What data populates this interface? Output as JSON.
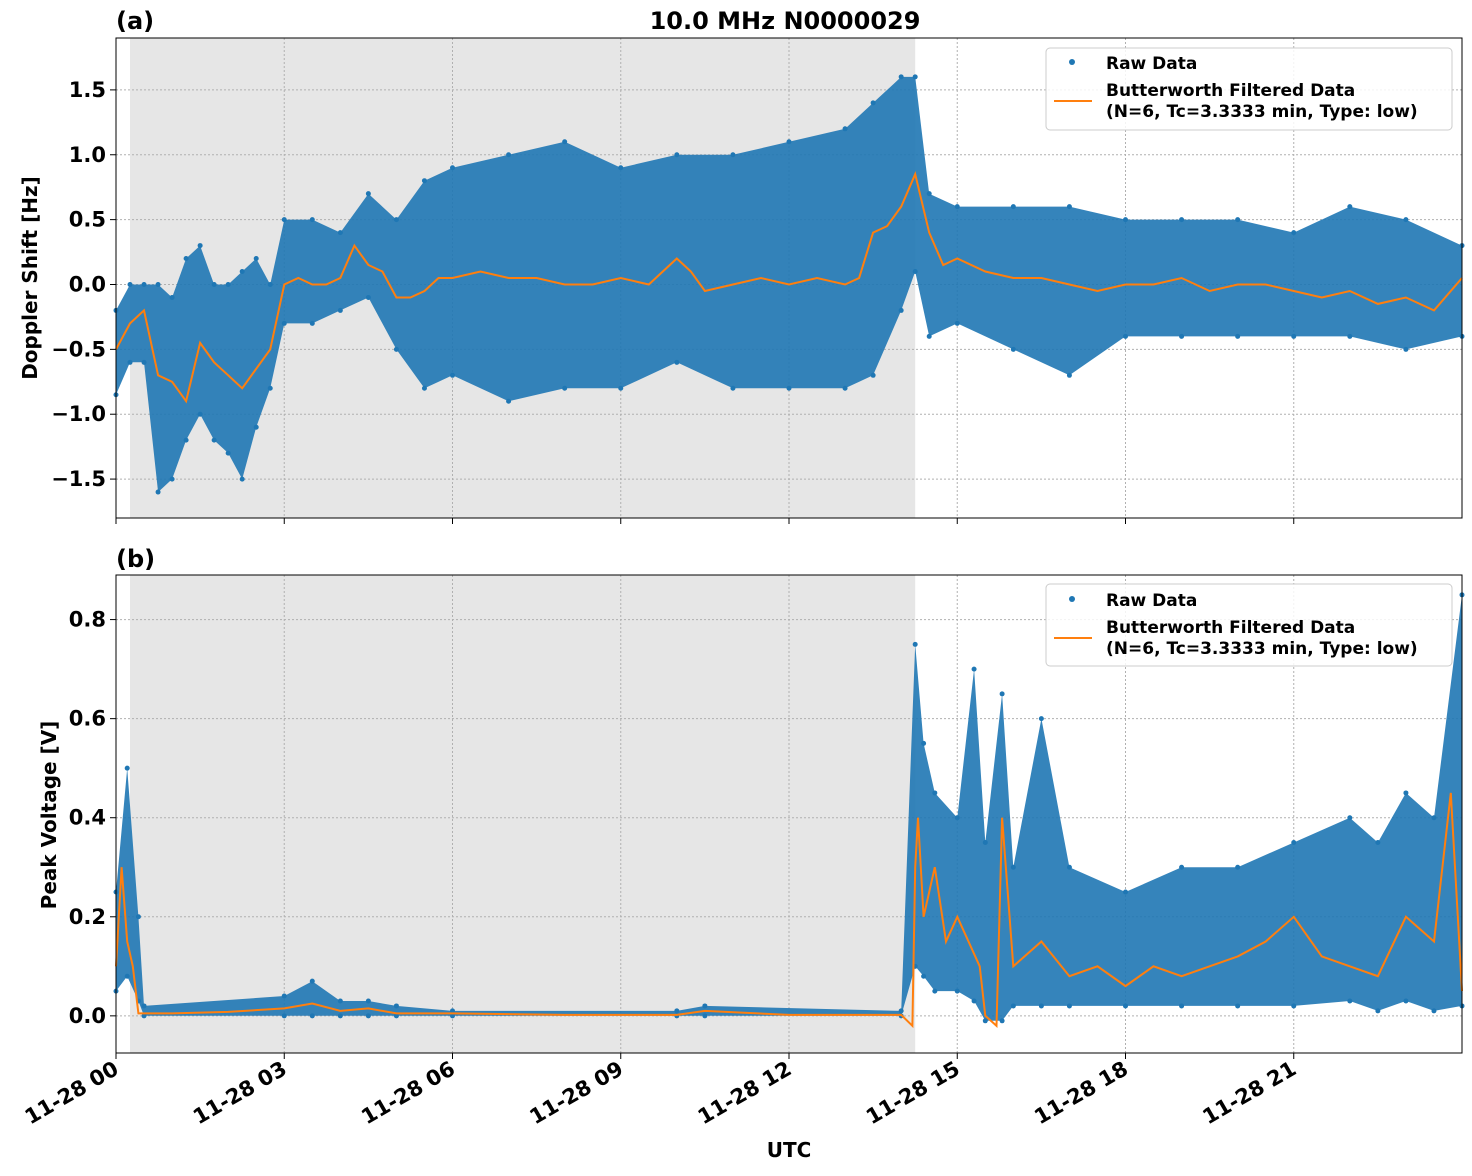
{
  "figure": {
    "title": "10.0 MHz N0000029",
    "xlabel": "UTC",
    "x_tick_labels": [
      "11-28 00",
      "11-28 03",
      "11-28 06",
      "11-28 09",
      "11-28 12",
      "11-28 15",
      "11-28 18",
      "11-28 21"
    ],
    "colors": {
      "raw": "#1f77b4",
      "filtered": "#ff7f0e",
      "night_shade": "#e6e6e6"
    }
  },
  "chart_data": [
    {
      "type": "line",
      "panel_label": "(a)",
      "title": "10.0 MHz N0000029",
      "xlabel": "",
      "ylabel": "Doppler Shift [Hz]",
      "x_unit": "hours UTC on 11-28",
      "xlim": [
        0,
        24
      ],
      "ylim": [
        -1.8,
        1.9
      ],
      "y_ticks": [
        -1.5,
        -1.0,
        -0.5,
        0.0,
        0.5,
        1.0,
        1.5
      ],
      "y_tick_labels": [
        "−1.5",
        "−1.0",
        "−0.5",
        "0.0",
        "0.5",
        "1.0",
        "1.5"
      ],
      "shaded_interval": [
        0.25,
        14.25
      ],
      "grid": true,
      "legend_position": "top-right",
      "legend": [
        "Raw Data",
        "Butterworth Filtered Data",
        "(N=6, Tc=3.3333 min, Type: low)"
      ],
      "series": [
        {
          "name": "Butterworth Filtered Data",
          "style": "line",
          "x": [
            0,
            0.25,
            0.5,
            0.75,
            1,
            1.25,
            1.5,
            1.75,
            2,
            2.25,
            2.5,
            2.75,
            3,
            3.25,
            3.5,
            3.75,
            4,
            4.25,
            4.5,
            4.75,
            5,
            5.25,
            5.5,
            5.75,
            6,
            6.5,
            7,
            7.5,
            8,
            8.5,
            9,
            9.5,
            10,
            10.25,
            10.5,
            11,
            11.5,
            12,
            12.5,
            13,
            13.25,
            13.5,
            13.75,
            14,
            14.25,
            14.5,
            14.75,
            15,
            15.5,
            16,
            16.5,
            17,
            17.5,
            18,
            18.5,
            19,
            19.5,
            20,
            20.5,
            21,
            21.5,
            22,
            22.5,
            23,
            23.5,
            24
          ],
          "y": [
            -0.5,
            -0.3,
            -0.2,
            -0.7,
            -0.75,
            -0.9,
            -0.45,
            -0.6,
            -0.7,
            -0.8,
            -0.65,
            -0.5,
            0.0,
            0.05,
            0.0,
            0.0,
            0.05,
            0.3,
            0.15,
            0.1,
            -0.1,
            -0.1,
            -0.05,
            0.05,
            0.05,
            0.1,
            0.05,
            0.05,
            0.0,
            0.0,
            0.05,
            0.0,
            0.2,
            0.1,
            -0.05,
            0.0,
            0.05,
            0.0,
            0.05,
            0.0,
            0.05,
            0.4,
            0.45,
            0.6,
            0.85,
            0.4,
            0.15,
            0.2,
            0.1,
            0.05,
            0.05,
            0.0,
            -0.05,
            0.0,
            0.0,
            0.05,
            -0.05,
            0.0,
            0.0,
            -0.05,
            -0.1,
            -0.05,
            -0.15,
            -0.1,
            -0.2,
            0.05
          ]
        },
        {
          "name": "Raw Data",
          "style": "scatter-band",
          "x": [
            0,
            0.25,
            0.5,
            0.75,
            1,
            1.25,
            1.5,
            1.75,
            2,
            2.25,
            2.5,
            2.75,
            3,
            3.5,
            4,
            4.5,
            5,
            5.5,
            6,
            7,
            8,
            9,
            10,
            11,
            12,
            13,
            13.5,
            14,
            14.25,
            14.5,
            15,
            16,
            17,
            18,
            19,
            20,
            21,
            22,
            23,
            24
          ],
          "lower": [
            -0.85,
            -0.6,
            -0.6,
            -1.6,
            -1.5,
            -1.2,
            -1.0,
            -1.2,
            -1.3,
            -1.5,
            -1.1,
            -0.8,
            -0.3,
            -0.3,
            -0.2,
            -0.1,
            -0.5,
            -0.8,
            -0.7,
            -0.9,
            -0.8,
            -0.8,
            -0.6,
            -0.8,
            -0.8,
            -0.8,
            -0.7,
            -0.2,
            0.1,
            -0.4,
            -0.3,
            -0.5,
            -0.7,
            -0.4,
            -0.4,
            -0.4,
            -0.4,
            -0.4,
            -0.5,
            -0.4
          ],
          "upper": [
            -0.2,
            0.0,
            0.0,
            0.0,
            -0.1,
            0.2,
            0.3,
            0.0,
            0.0,
            0.1,
            0.2,
            0.0,
            0.5,
            0.5,
            0.4,
            0.7,
            0.5,
            0.8,
            0.9,
            1.0,
            1.1,
            0.9,
            1.0,
            1.0,
            1.1,
            1.2,
            1.4,
            1.6,
            1.6,
            0.7,
            0.6,
            0.6,
            0.6,
            0.5,
            0.5,
            0.5,
            0.4,
            0.6,
            0.5,
            0.3
          ]
        }
      ]
    },
    {
      "type": "line",
      "panel_label": "(b)",
      "title": "",
      "xlabel": "UTC",
      "ylabel": "Peak Voltage [V]",
      "x_unit": "hours UTC on 11-28",
      "xlim": [
        0,
        24
      ],
      "ylim": [
        -0.075,
        0.89
      ],
      "y_ticks": [
        0.0,
        0.2,
        0.4,
        0.6,
        0.8
      ],
      "y_tick_labels": [
        "0.0",
        "0.2",
        "0.4",
        "0.6",
        "0.8"
      ],
      "shaded_interval": [
        0.25,
        14.25
      ],
      "grid": true,
      "legend_position": "top-right",
      "legend": [
        "Raw Data",
        "Butterworth Filtered Data",
        "(N=6, Tc=3.3333 min, Type: low)"
      ],
      "series": [
        {
          "name": "Butterworth Filtered Data",
          "style": "line",
          "x": [
            0,
            0.1,
            0.2,
            0.3,
            0.4,
            0.5,
            1,
            2,
            3,
            3.5,
            4,
            4.5,
            5,
            6,
            8,
            10,
            10.5,
            12,
            14,
            14.2,
            14.25,
            14.3,
            14.4,
            14.6,
            14.8,
            15,
            15.2,
            15.4,
            15.5,
            15.7,
            15.8,
            16,
            16.5,
            17,
            17.5,
            18,
            18.5,
            19,
            19.5,
            20,
            20.5,
            21,
            21.5,
            22,
            22.5,
            23,
            23.5,
            23.8,
            24
          ],
          "y": [
            0.1,
            0.3,
            0.15,
            0.1,
            0.005,
            0.005,
            0.005,
            0.008,
            0.015,
            0.025,
            0.01,
            0.015,
            0.005,
            0.005,
            0.002,
            0.002,
            0.01,
            0.002,
            0.002,
            -0.02,
            0.3,
            0.4,
            0.2,
            0.3,
            0.15,
            0.2,
            0.15,
            0.1,
            0.0,
            -0.02,
            0.4,
            0.1,
            0.15,
            0.08,
            0.1,
            0.06,
            0.1,
            0.08,
            0.1,
            0.12,
            0.15,
            0.2,
            0.12,
            0.1,
            0.08,
            0.2,
            0.15,
            0.45,
            0.05
          ]
        },
        {
          "name": "Raw Data",
          "style": "scatter-band",
          "x": [
            0,
            0.2,
            0.4,
            0.5,
            3,
            3.5,
            4,
            4.5,
            5,
            6,
            10,
            10.5,
            14,
            14.25,
            14.4,
            14.6,
            15,
            15.3,
            15.5,
            15.8,
            16,
            16.5,
            17,
            18,
            19,
            20,
            21,
            22,
            22.5,
            23,
            23.5,
            24
          ],
          "lower": [
            0.05,
            0.08,
            0.03,
            0.0,
            0.0,
            0.0,
            0.0,
            0.0,
            0.0,
            0.0,
            0.0,
            0.0,
            0.0,
            0.1,
            0.08,
            0.05,
            0.05,
            0.03,
            -0.01,
            -0.01,
            0.02,
            0.02,
            0.02,
            0.02,
            0.02,
            0.02,
            0.02,
            0.03,
            0.01,
            0.03,
            0.01,
            0.02
          ],
          "upper": [
            0.25,
            0.5,
            0.2,
            0.02,
            0.04,
            0.07,
            0.03,
            0.03,
            0.02,
            0.01,
            0.01,
            0.02,
            0.01,
            0.75,
            0.55,
            0.45,
            0.4,
            0.7,
            0.35,
            0.65,
            0.3,
            0.6,
            0.3,
            0.25,
            0.3,
            0.3,
            0.35,
            0.4,
            0.35,
            0.45,
            0.4,
            0.85
          ]
        }
      ]
    }
  ]
}
